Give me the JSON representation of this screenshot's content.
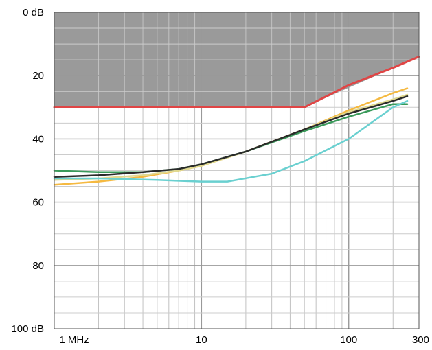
{
  "chart_data": {
    "type": "line",
    "title": "",
    "xlabel": "",
    "ylabel": "",
    "x_scale": "log",
    "xlim": [
      1,
      300
    ],
    "ylim": [
      0,
      100
    ],
    "y_inverted": true,
    "grid": true,
    "x_ticks": [
      {
        "value": 1,
        "label": "1 MHz"
      },
      {
        "value": 10,
        "label": "10"
      },
      {
        "value": 100,
        "label": "100"
      },
      {
        "value": 300,
        "label": "300"
      }
    ],
    "y_ticks": [
      {
        "value": 0,
        "label": "0 dB"
      },
      {
        "value": 20,
        "label": "20"
      },
      {
        "value": 40,
        "label": "40"
      },
      {
        "value": 60,
        "label": "60"
      },
      {
        "value": 80,
        "label": "80"
      },
      {
        "value": 100,
        "label": "100 dB"
      }
    ],
    "shaded_region": {
      "color": "#9a9a9a",
      "points": [
        [
          1,
          30
        ],
        [
          50,
          30
        ],
        [
          300,
          14
        ]
      ]
    },
    "series": [
      {
        "color": "#e04545",
        "points": [
          [
            1,
            30
          ],
          [
            50,
            30
          ],
          [
            100,
            23
          ],
          [
            200,
            17.5
          ],
          [
            300,
            14
          ]
        ]
      },
      {
        "color": "#f5b940",
        "points": [
          [
            1,
            54.5
          ],
          [
            2,
            53.5
          ],
          [
            4,
            52
          ],
          [
            7,
            50
          ],
          [
            10,
            48.5
          ],
          [
            20,
            44
          ],
          [
            50,
            37
          ],
          [
            100,
            31
          ],
          [
            200,
            25.5
          ],
          [
            250,
            24
          ]
        ]
      },
      {
        "color": "#e0d890",
        "points": [
          [
            1,
            53
          ],
          [
            2,
            52.5
          ],
          [
            4,
            51.5
          ],
          [
            7,
            50
          ],
          [
            10,
            48.5
          ],
          [
            20,
            44
          ],
          [
            50,
            37
          ],
          [
            100,
            31.5
          ],
          [
            200,
            27.5
          ],
          [
            250,
            26
          ]
        ]
      },
      {
        "color": "#3a9a5a",
        "points": [
          [
            1,
            50
          ],
          [
            2,
            50.5
          ],
          [
            4,
            50.5
          ],
          [
            7,
            49.5
          ],
          [
            10,
            48
          ],
          [
            20,
            44
          ],
          [
            50,
            37.5
          ],
          [
            100,
            33
          ],
          [
            200,
            29
          ],
          [
            250,
            29
          ]
        ]
      },
      {
        "color": "#6ad0d0",
        "points": [
          [
            1,
            52.5
          ],
          [
            2,
            52.5
          ],
          [
            5,
            53
          ],
          [
            10,
            53.5
          ],
          [
            15,
            53.5
          ],
          [
            30,
            51
          ],
          [
            50,
            47
          ],
          [
            100,
            40
          ],
          [
            200,
            30
          ],
          [
            250,
            28
          ]
        ]
      },
      {
        "color": "#2a2a2a",
        "points": [
          [
            1,
            52
          ],
          [
            2,
            51.5
          ],
          [
            4,
            50.5
          ],
          [
            7,
            49.5
          ],
          [
            10,
            48
          ],
          [
            20,
            44
          ],
          [
            50,
            37
          ],
          [
            100,
            32
          ],
          [
            200,
            28
          ],
          [
            250,
            26.5
          ]
        ]
      }
    ]
  }
}
